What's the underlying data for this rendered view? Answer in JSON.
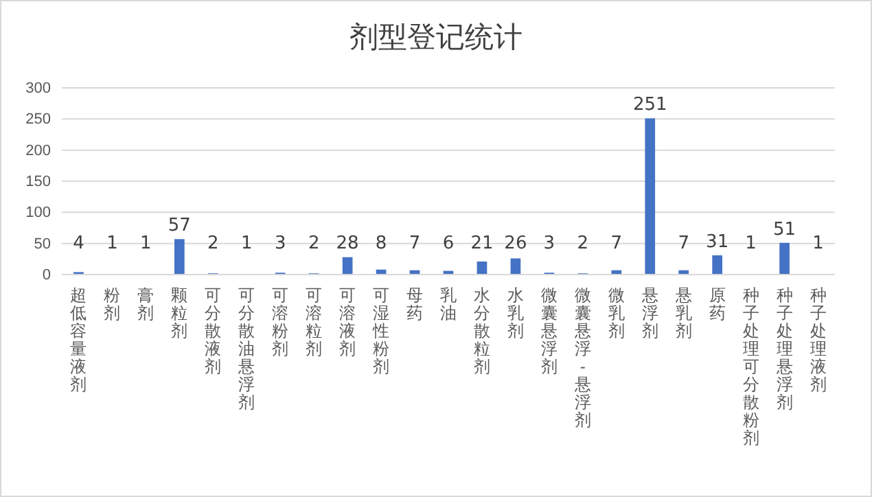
{
  "chart_data": {
    "type": "bar",
    "title": "剂型登记统计",
    "categories": [
      "超低容量液剂",
      "粉剂",
      "膏剂",
      "颗粒剂",
      "可分散液剂",
      "可分散油悬浮剂",
      "可溶粉剂",
      "可溶粒剂",
      "可溶液剂",
      "可湿性粉剂",
      "母药",
      "乳油",
      "水分散粒剂",
      "水乳剂",
      "微囊悬浮剂",
      "微囊悬浮-悬浮剂",
      "微乳剂",
      "悬浮剂",
      "悬乳剂",
      "原药",
      "种子处理可分散粉剂",
      "种子处理悬浮剂",
      "种子处理液剂"
    ],
    "values": [
      4,
      1,
      1,
      57,
      2,
      1,
      3,
      2,
      28,
      8,
      7,
      6,
      21,
      26,
      3,
      2,
      7,
      251,
      7,
      31,
      1,
      51,
      1
    ],
    "color": "#4472c4",
    "ylim": [
      0,
      300
    ],
    "yticks": [
      0,
      50,
      100,
      150,
      200,
      250,
      300
    ],
    "grid": "y",
    "data_labels": true
  }
}
